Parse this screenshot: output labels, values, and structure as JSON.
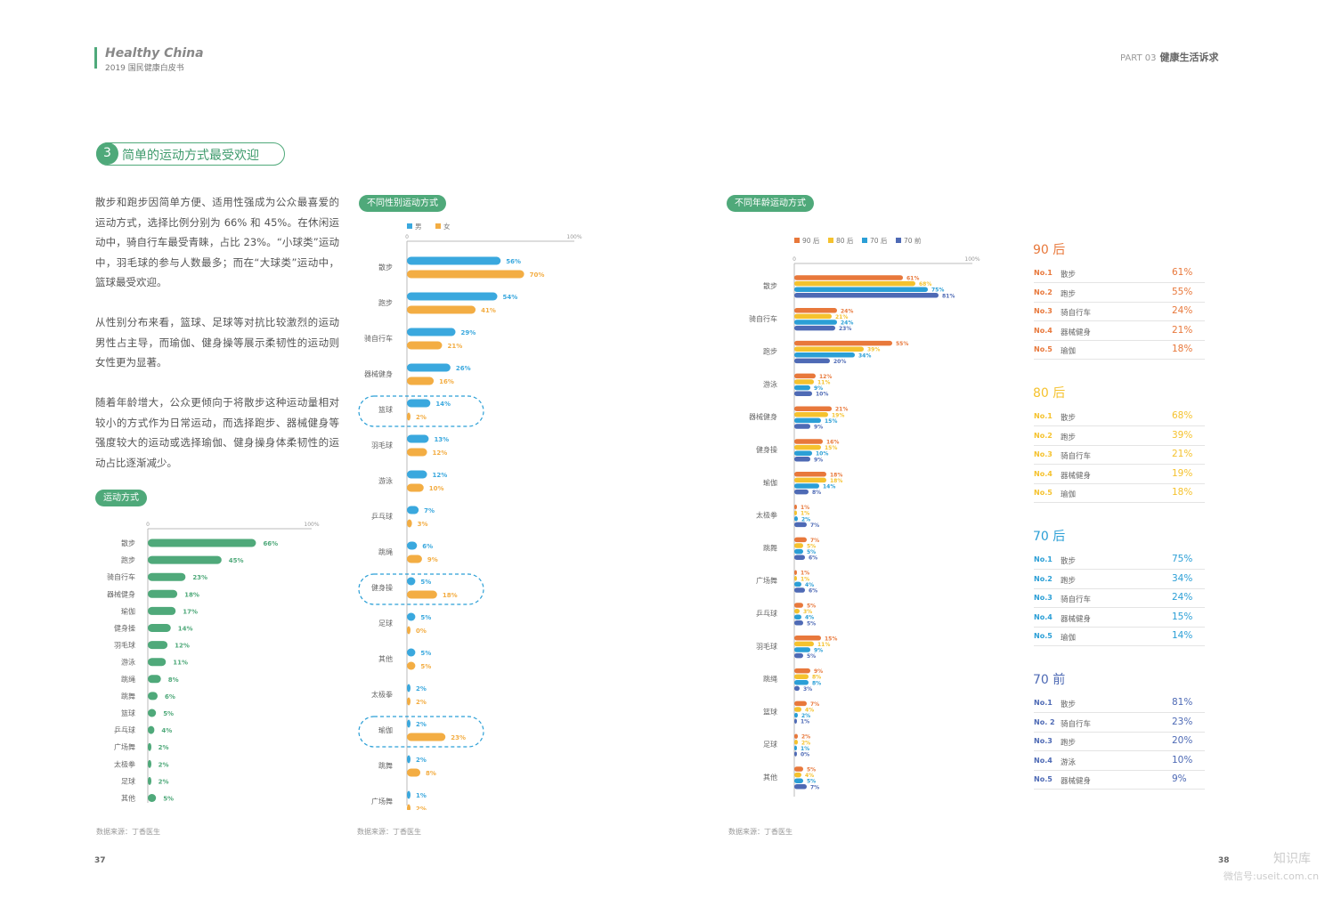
{
  "header": {
    "brand_title": "Healthy China",
    "brand_subtitle": "2019 国民健康白皮书",
    "part_label": "PART 03",
    "part_title": "健康生活诉求"
  },
  "section": {
    "number": "3",
    "title": "简单的运动方式最受欢迎"
  },
  "paragraphs": [
    "散步和跑步因简单方便、适用性强成为公众最喜爱的运动方式，选择比例分别为 66% 和 45%。在休闲运动中，骑自行车最受青睐，占比 23%。“小球类”运动中，羽毛球的参与人数最多；而在“大球类”运动中，篮球最受欢迎。",
    "从性别分布来看，篮球、足球等对抗比较激烈的运动男性占主导，而瑜伽、健身操等展示柔韧性的运动则女性更为显著。",
    "随着年龄增大，公众更倾向于将散步这种运动量相对较小的方式作为日常运动，而选择跑步、器械健身等强度较大的运动或选择瑜伽、健身操身体柔韧性的运动占比逐渐减少。"
  ],
  "colors": {
    "green": "#4fa97a",
    "blue": "#3aa8de",
    "orange": "#f3ad43",
    "red": "#e8783b",
    "yellow": "#f5c22e",
    "cyan": "#2b9fd6",
    "navy": "#4e6ab5"
  },
  "pages": {
    "left": "37",
    "right": "38"
  },
  "watermark": {
    "line1": "知识库",
    "line2": "微信号:useit.com.cn"
  },
  "chart_data": [
    {
      "id": "overall",
      "type": "bar",
      "orientation": "horizontal",
      "title": "运动方式",
      "axis_ticks": [
        "0",
        "100%"
      ],
      "xlim": [
        0,
        100
      ],
      "categories": [
        "散步",
        "跑步",
        "骑自行车",
        "器械健身",
        "瑜伽",
        "健身操",
        "羽毛球",
        "游泳",
        "跳绳",
        "跳舞",
        "篮球",
        "乒乓球",
        "广场舞",
        "太极拳",
        "足球",
        "其他"
      ],
      "values": [
        66,
        45,
        23,
        18,
        17,
        14,
        12,
        11,
        8,
        6,
        5,
        4,
        2,
        2,
        2,
        5
      ],
      "source": "数据来源：丁香医生"
    },
    {
      "id": "gender",
      "type": "bar",
      "orientation": "horizontal",
      "title": "不同性别运动方式",
      "axis_ticks": [
        "0",
        "100%"
      ],
      "xlim": [
        0,
        100
      ],
      "legend": "top-left",
      "categories": [
        "散步",
        "跑步",
        "骑自行车",
        "器械健身",
        "篮球",
        "羽毛球",
        "游泳",
        "乒乓球",
        "跳绳",
        "健身操",
        "足球",
        "其他",
        "太极拳",
        "瑜伽",
        "跳舞",
        "广场舞"
      ],
      "highlighted": [
        "篮球",
        "健身操",
        "瑜伽"
      ],
      "series": [
        {
          "name": "男",
          "values": [
            56,
            54,
            29,
            26,
            14,
            13,
            12,
            7,
            6,
            5,
            5,
            5,
            2,
            2,
            2,
            1
          ]
        },
        {
          "name": "女",
          "values": [
            70,
            41,
            21,
            16,
            2,
            12,
            10,
            3,
            9,
            18,
            0,
            5,
            2,
            23,
            8,
            2
          ]
        }
      ],
      "source": "数据来源：丁香医生"
    },
    {
      "id": "age",
      "type": "bar",
      "orientation": "horizontal",
      "title": "不同年龄运动方式",
      "axis_ticks": [
        "0",
        "100%"
      ],
      "xlim": [
        0,
        100
      ],
      "legend": "top-left",
      "categories": [
        "散步",
        "骑自行车",
        "跑步",
        "游泳",
        "器械健身",
        "健身操",
        "瑜伽",
        "太极拳",
        "跳舞",
        "广场舞",
        "乒乓球",
        "羽毛球",
        "跳绳",
        "篮球",
        "足球",
        "其他"
      ],
      "series": [
        {
          "name": "90 后",
          "values": [
            61,
            24,
            55,
            12,
            21,
            16,
            18,
            1,
            7,
            1,
            5,
            15,
            9,
            7,
            2,
            5
          ]
        },
        {
          "name": "80 后",
          "values": [
            68,
            21,
            39,
            11,
            19,
            15,
            18,
            1,
            5,
            1,
            3,
            11,
            8,
            4,
            2,
            4
          ]
        },
        {
          "name": "70 后",
          "values": [
            75,
            24,
            34,
            9,
            15,
            10,
            14,
            2,
            5,
            4,
            4,
            9,
            8,
            2,
            1,
            5
          ]
        },
        {
          "name": "70 前",
          "values": [
            81,
            23,
            20,
            10,
            9,
            9,
            8,
            7,
            6,
            6,
            5,
            5,
            3,
            1,
            0,
            7
          ]
        }
      ],
      "source": "数据来源：丁香医生"
    }
  ],
  "rankings": [
    {
      "title": "90 后",
      "color": "#e8783b",
      "items": [
        {
          "no": "No.1",
          "name": "散步",
          "pct": "61%"
        },
        {
          "no": "No.2",
          "name": "跑步",
          "pct": "55%"
        },
        {
          "no": "No.3",
          "name": "骑自行车",
          "pct": "24%"
        },
        {
          "no": "No.4",
          "name": "器械健身",
          "pct": "21%"
        },
        {
          "no": "No.5",
          "name": "瑜伽",
          "pct": "18%"
        }
      ]
    },
    {
      "title": "80 后",
      "color": "#f5c22e",
      "items": [
        {
          "no": "No.1",
          "name": "散步",
          "pct": "68%"
        },
        {
          "no": "No.2",
          "name": "跑步",
          "pct": "39%"
        },
        {
          "no": "No.3",
          "name": "骑自行车",
          "pct": "21%"
        },
        {
          "no": "No.4",
          "name": "器械健身",
          "pct": "19%"
        },
        {
          "no": "No.5",
          "name": "瑜伽",
          "pct": "18%"
        }
      ]
    },
    {
      "title": "70 后",
      "color": "#2b9fd6",
      "items": [
        {
          "no": "No.1",
          "name": "散步",
          "pct": "75%"
        },
        {
          "no": "No.2",
          "name": "跑步",
          "pct": "34%"
        },
        {
          "no": "No.3",
          "name": "骑自行车",
          "pct": "24%"
        },
        {
          "no": "No.4",
          "name": "器械健身",
          "pct": "15%"
        },
        {
          "no": "No.5",
          "name": "瑜伽",
          "pct": "14%"
        }
      ]
    },
    {
      "title": "70 前",
      "color": "#4e6ab5",
      "items": [
        {
          "no": "No.1",
          "name": "散步",
          "pct": "81%"
        },
        {
          "no": "No. 2",
          "name": "骑自行车",
          "pct": "23%"
        },
        {
          "no": "No.3",
          "name": "跑步",
          "pct": "20%"
        },
        {
          "no": "No.4",
          "name": "游泳",
          "pct": "10%"
        },
        {
          "no": "No.5",
          "name": "器械健身",
          "pct": "9%"
        }
      ]
    }
  ]
}
